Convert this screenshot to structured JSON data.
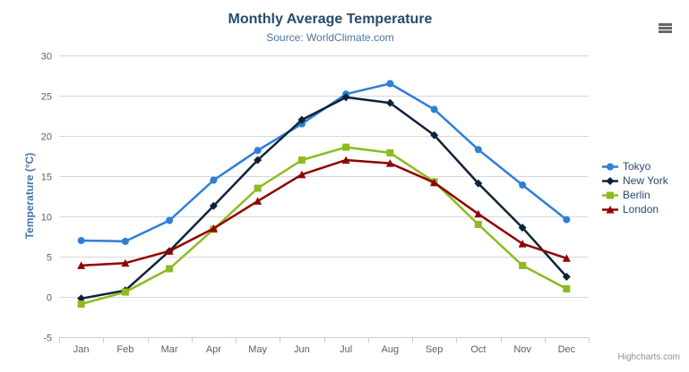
{
  "header": {
    "title": "Monthly Average Temperature",
    "subtitle": "Source: WorldClimate.com"
  },
  "icons": {
    "menu": "hamburger-icon"
  },
  "credits": "Highcharts.com",
  "theme": {
    "title_color": "#274b6d",
    "subtitle_color": "#4d759e",
    "axis_title_color": "#4572a7",
    "axis_label_color": "#606060",
    "grid_color": "#d8d8d8",
    "axis_line_color": "#c0d0e0",
    "legend_text_color": "#274b6d",
    "credits_color": "#909090"
  },
  "chart_data": {
    "type": "line",
    "title": "Monthly Average Temperature",
    "subtitle": "Source: WorldClimate.com",
    "categories": [
      "Jan",
      "Feb",
      "Mar",
      "Apr",
      "May",
      "Jun",
      "Jul",
      "Aug",
      "Sep",
      "Oct",
      "Nov",
      "Dec"
    ],
    "xlabel": "",
    "ylabel": "Temperature (°C)",
    "ylim": [
      -5,
      30
    ],
    "ytick_interval": 5,
    "grid": true,
    "legend_position": "right",
    "series": [
      {
        "name": "Tokyo",
        "color": "#2f7ed8",
        "marker": "circle",
        "values": [
          7.0,
          6.9,
          9.5,
          14.5,
          18.2,
          21.5,
          25.2,
          26.5,
          23.3,
          18.3,
          13.9,
          9.6
        ]
      },
      {
        "name": "New York",
        "color": "#0d233a",
        "marker": "diamond",
        "values": [
          -0.2,
          0.8,
          5.7,
          11.3,
          17.0,
          22.0,
          24.8,
          24.1,
          20.1,
          14.1,
          8.6,
          2.5
        ]
      },
      {
        "name": "Berlin",
        "color": "#8bbc21",
        "marker": "square",
        "values": [
          -0.9,
          0.6,
          3.5,
          8.4,
          13.5,
          17.0,
          18.6,
          17.9,
          14.3,
          9.0,
          3.9,
          1.0
        ]
      },
      {
        "name": "London",
        "color": "#910000",
        "marker": "triangle",
        "values": [
          3.9,
          4.2,
          5.7,
          8.5,
          11.9,
          15.2,
          17.0,
          16.6,
          14.2,
          10.3,
          6.6,
          4.8
        ]
      }
    ]
  }
}
